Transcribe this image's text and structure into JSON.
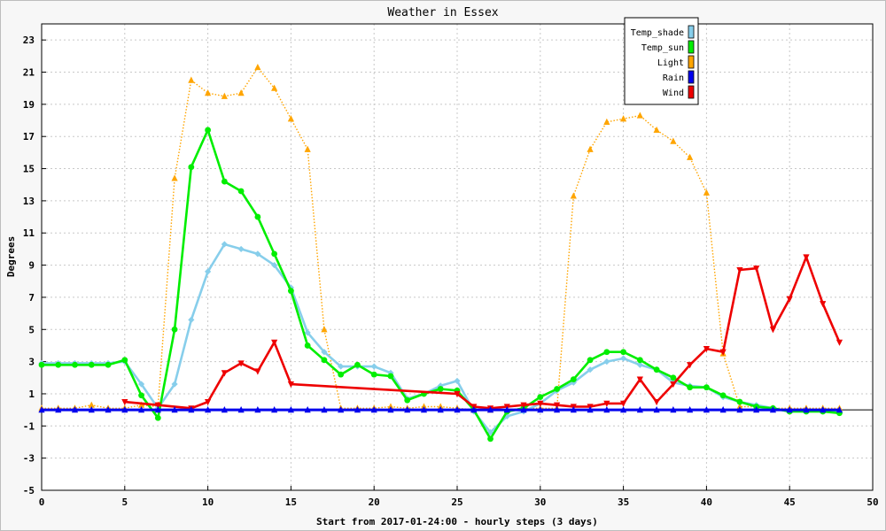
{
  "chart_data": {
    "type": "line",
    "title": "Weather in Essex",
    "xlabel": "Start from 2017-01-24:00 - hourly steps (3 days)",
    "ylabel": "Degrees",
    "xlim": [
      0,
      50
    ],
    "ylim": [
      -5,
      24
    ],
    "x_ticks": [
      0,
      5,
      10,
      15,
      20,
      25,
      30,
      35,
      40,
      45,
      50
    ],
    "y_ticks": [
      -5,
      -3,
      -1,
      1,
      3,
      5,
      7,
      9,
      11,
      13,
      15,
      17,
      19,
      21,
      23
    ],
    "grid": true,
    "legend_position": "top-right",
    "x": [
      0,
      1,
      2,
      3,
      4,
      5,
      6,
      7,
      8,
      9,
      10,
      11,
      12,
      13,
      14,
      15,
      16,
      17,
      18,
      19,
      20,
      21,
      22,
      23,
      24,
      25,
      26,
      27,
      28,
      29,
      30,
      31,
      32,
      33,
      34,
      35,
      36,
      37,
      38,
      39,
      40,
      41,
      42,
      43,
      44,
      45,
      46,
      47,
      48
    ],
    "series": [
      {
        "name": "Temp_shade",
        "color": "#87ceeb",
        "line_style": "solid",
        "marker": "diamond",
        "values": [
          2.9,
          2.9,
          2.9,
          2.9,
          2.9,
          3.0,
          1.6,
          0.1,
          1.6,
          5.6,
          8.6,
          10.3,
          10.0,
          9.7,
          9.0,
          7.6,
          4.8,
          3.6,
          2.7,
          2.7,
          2.7,
          2.3,
          0.7,
          1.0,
          1.5,
          1.8,
          -0.1,
          -1.4,
          -0.4,
          -0.1,
          0.4,
          1.2,
          1.7,
          2.5,
          3.0,
          3.2,
          2.8,
          2.5,
          1.7,
          1.5,
          1.4,
          0.8,
          0.5,
          0.3,
          0.1,
          -0.1,
          -0.1,
          -0.1,
          -0.1
        ]
      },
      {
        "name": "Temp_sun",
        "color": "#00ee00",
        "line_style": "solid",
        "marker": "circle",
        "values": [
          2.8,
          2.8,
          2.8,
          2.8,
          2.8,
          3.1,
          0.9,
          -0.5,
          5.0,
          15.1,
          17.4,
          14.2,
          13.6,
          12.0,
          9.7,
          7.4,
          4.0,
          3.1,
          2.2,
          2.8,
          2.2,
          2.1,
          0.6,
          1.0,
          1.3,
          1.2,
          0.0,
          -1.8,
          -0.1,
          0.1,
          0.8,
          1.3,
          1.9,
          3.1,
          3.6,
          3.6,
          3.1,
          2.5,
          2.0,
          1.4,
          1.4,
          0.9,
          0.5,
          0.2,
          0.1,
          -0.1,
          -0.1,
          -0.1,
          -0.2
        ]
      },
      {
        "name": "Light",
        "color": "#ffa500",
        "line_style": "dotted",
        "marker": "triangle-up",
        "values": [
          0.1,
          0.1,
          0.1,
          0.3,
          0.1,
          0.1,
          0.3,
          0.2,
          14.4,
          20.5,
          19.7,
          19.5,
          19.7,
          21.3,
          20.0,
          18.1,
          16.2,
          5.0,
          0.1,
          0.1,
          0.1,
          0.2,
          0.1,
          0.2,
          0.2,
          0.1,
          0.0,
          0.0,
          0.0,
          0.1,
          0.1,
          0.1,
          13.3,
          16.2,
          17.9,
          18.1,
          18.3,
          17.4,
          16.7,
          15.7,
          13.5,
          3.5,
          0.2,
          0.2,
          0.1,
          0.1,
          0.1,
          0.1,
          0.1
        ]
      },
      {
        "name": "Rain",
        "color": "#0000ee",
        "line_style": "solid",
        "marker": "triangle-up",
        "values": [
          0,
          0,
          0,
          0,
          0,
          0,
          0,
          0,
          0,
          0,
          0,
          0,
          0,
          0,
          0,
          0,
          0,
          0,
          0,
          0,
          0,
          0,
          0,
          0,
          0,
          0,
          0,
          0,
          0,
          0,
          0,
          0,
          0,
          0,
          0,
          0,
          0,
          0,
          0,
          0,
          0,
          0,
          0,
          0,
          0,
          0,
          0,
          0,
          0
        ]
      },
      {
        "name": "Wind",
        "color": "#ee0000",
        "line_style": "solid",
        "marker": "triangle-down",
        "points": [
          [
            5,
            0.5
          ],
          [
            7,
            0.3
          ],
          [
            9,
            0.1
          ],
          [
            10,
            0.5
          ],
          [
            11,
            2.3
          ],
          [
            12,
            2.9
          ],
          [
            13,
            2.4
          ],
          [
            14,
            4.2
          ],
          [
            15,
            1.6
          ],
          [
            25,
            1.0
          ],
          [
            26,
            0.2
          ],
          [
            27,
            0.1
          ],
          [
            28,
            0.2
          ],
          [
            29,
            0.3
          ],
          [
            30,
            0.4
          ],
          [
            31,
            0.3
          ],
          [
            32,
            0.2
          ],
          [
            33,
            0.2
          ],
          [
            34,
            0.4
          ],
          [
            35,
            0.4
          ],
          [
            36,
            1.9
          ],
          [
            37,
            0.5
          ],
          [
            38,
            1.6
          ],
          [
            39,
            2.8
          ],
          [
            40,
            3.8
          ],
          [
            41,
            3.6
          ],
          [
            42,
            8.7
          ],
          [
            43,
            8.8
          ],
          [
            44,
            5.0
          ],
          [
            45,
            6.9
          ],
          [
            46,
            9.5
          ],
          [
            47,
            6.6
          ],
          [
            48,
            4.2
          ]
        ]
      }
    ]
  }
}
